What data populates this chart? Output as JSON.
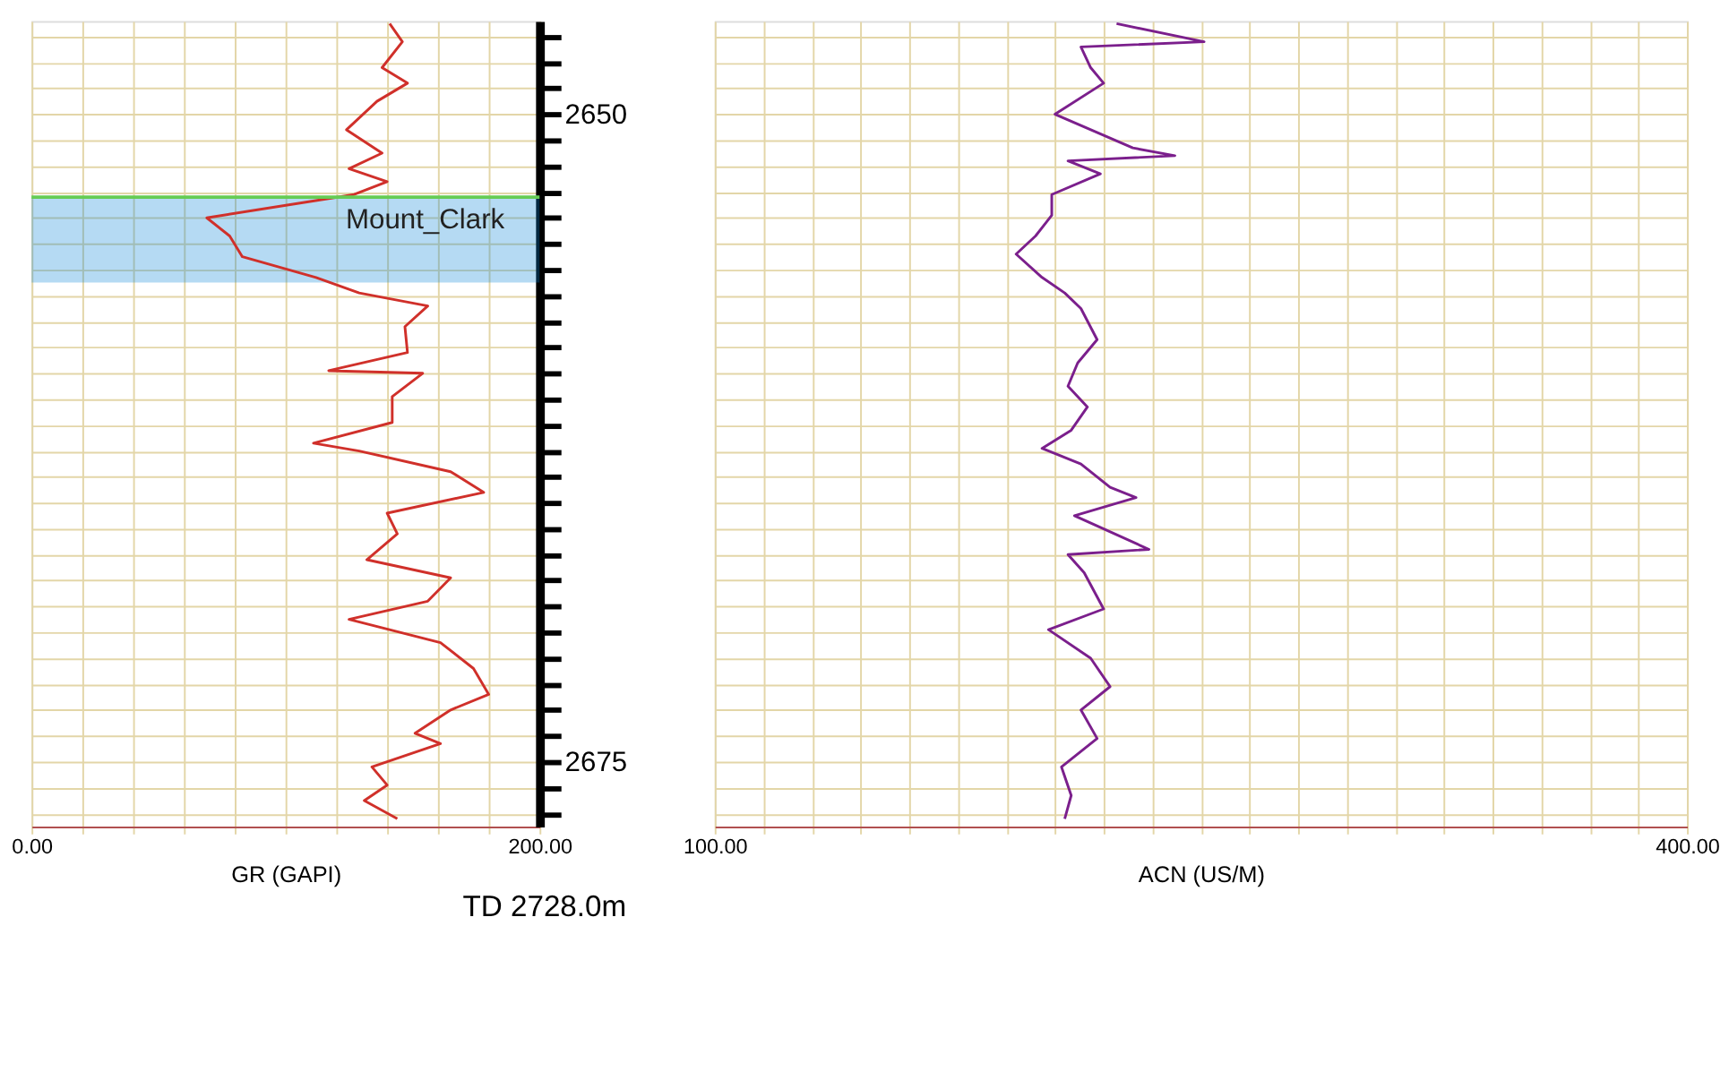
{
  "chart_data": [
    {
      "type": "line",
      "orientation": "horizontal",
      "xlabel": "GR (GAPI)",
      "xlim": [
        0,
        200
      ],
      "xticks": [
        {
          "value": 0,
          "label": "0.00"
        },
        {
          "value": 20,
          "label": null
        },
        {
          "value": 40,
          "label": null
        },
        {
          "value": 60,
          "label": null
        },
        {
          "value": 80,
          "label": null
        },
        {
          "value": 100,
          "label": null
        },
        {
          "value": 120,
          "label": null
        },
        {
          "value": 140,
          "label": null
        },
        {
          "value": 160,
          "label": null
        },
        {
          "value": 180,
          "label": null
        },
        {
          "value": 200,
          "label": "200.00"
        }
      ],
      "ylim": [
        2677.5,
        2646.4
      ],
      "yticks": [
        {
          "value": 2647,
          "label": null
        },
        {
          "value": 2648,
          "label": null
        },
        {
          "value": 2649,
          "label": null
        },
        2650,
        {
          "value": 2651,
          "label": null
        },
        {
          "value": 2652,
          "label": null
        },
        {
          "value": 2653,
          "label": null
        },
        {
          "value": 2654,
          "label": null
        },
        {
          "value": 2655,
          "label": null
        },
        {
          "value": 2656,
          "label": null
        },
        {
          "value": 2657,
          "label": null
        },
        {
          "value": 2658,
          "label": null
        },
        {
          "value": 2659,
          "label": null
        },
        {
          "value": 2660,
          "label": null
        },
        {
          "value": 2661,
          "label": null
        },
        {
          "value": 2662,
          "label": null
        },
        {
          "value": 2663,
          "label": null
        },
        {
          "value": 2664,
          "label": null
        },
        {
          "value": 2665,
          "label": null
        },
        {
          "value": 2666,
          "label": null
        },
        {
          "value": 2667,
          "label": null
        },
        {
          "value": 2668,
          "label": null
        },
        {
          "value": 2669,
          "label": null
        },
        {
          "value": 2670,
          "label": null
        },
        {
          "value": 2671,
          "label": null
        },
        {
          "value": 2672,
          "label": null
        },
        {
          "value": 2673,
          "label": null
        },
        {
          "value": 2674,
          "label": null
        },
        2675,
        {
          "value": 2676,
          "label": null
        },
        {
          "value": 2677,
          "label": null
        }
      ],
      "grid": true,
      "x": [
        2646.5,
        2647.2,
        2648.2,
        2648.8,
        2649.5,
        2650.6,
        2651.5,
        2652.1,
        2652.6,
        2653.1,
        2654.0,
        2654.7,
        2655.5,
        2656.3,
        2656.9,
        2657.4,
        2658.2,
        2659.2,
        2659.9,
        2660.0,
        2660.9,
        2661.9,
        2662.7,
        2663.0,
        2663.8,
        2664.6,
        2665.4,
        2666.2,
        2667.2,
        2667.9,
        2668.8,
        2669.5,
        2670.4,
        2671.4,
        2672.4,
        2673.0,
        2673.9,
        2674.3,
        2675.2,
        2675.9,
        2676.5,
        2677.2
      ],
      "series": [
        {
          "color": "#d0302a",
          "values": [
            141,
            146,
            138,
            148,
            136,
            124,
            138,
            125,
            140,
            127,
            69,
            78,
            83,
            112,
            129,
            156,
            147,
            148,
            117,
            154,
            142,
            142,
            111,
            129,
            165,
            178,
            140,
            144,
            132,
            165,
            156,
            125,
            161,
            174,
            180,
            165,
            151,
            161,
            134,
            140,
            131,
            144
          ]
        }
      ],
      "ref_lines": [
        {
          "axis": "y",
          "value": 2653.2,
          "label": "Mount_Clark",
          "color": "#66cc55"
        }
      ],
      "bands": [
        {
          "axis": "y",
          "from": 2653.2,
          "to": 2656.5,
          "color": "#0a84d8"
        }
      ],
      "annotations": [
        "TD  2728.0m"
      ]
    },
    {
      "type": "line",
      "orientation": "horizontal",
      "xlabel": "ACN (US/M)",
      "xlim": [
        100,
        400
      ],
      "xticks": [
        {
          "value": 100,
          "label": "100.00"
        },
        {
          "value": 115,
          "label": null
        },
        {
          "value": 130,
          "label": null
        },
        {
          "value": 145,
          "label": null
        },
        {
          "value": 160,
          "label": null
        },
        {
          "value": 175,
          "label": null
        },
        {
          "value": 190,
          "label": null
        },
        {
          "value": 205,
          "label": null
        },
        {
          "value": 220,
          "label": null
        },
        {
          "value": 235,
          "label": null
        },
        {
          "value": 250,
          "label": null
        },
        {
          "value": 265,
          "label": null
        },
        {
          "value": 280,
          "label": null
        },
        {
          "value": 295,
          "label": null
        },
        {
          "value": 310,
          "label": null
        },
        {
          "value": 325,
          "label": null
        },
        {
          "value": 340,
          "label": null
        },
        {
          "value": 355,
          "label": null
        },
        {
          "value": 370,
          "label": null
        },
        {
          "value": 385,
          "label": null
        },
        {
          "value": 400,
          "label": "400.00"
        }
      ],
      "ylim": [
        2677.5,
        2646.4
      ],
      "yticks": [
        2647,
        2648,
        2649,
        2650,
        2651,
        2652,
        2653,
        2654,
        2655,
        2656,
        2657,
        2658,
        2659,
        2660,
        2661,
        2662,
        2663,
        2664,
        2665,
        2666,
        2667,
        2668,
        2669,
        2670,
        2671,
        2672,
        2673,
        2674,
        2675,
        2676,
        2677
      ],
      "tick_labels": "x",
      "grid": true,
      "x": [
        2646.5,
        2647.2,
        2647.4,
        2648.2,
        2648.8,
        2650.0,
        2651.3,
        2651.6,
        2651.8,
        2652.3,
        2653.1,
        2653.9,
        2654.7,
        2655.4,
        2656.3,
        2656.9,
        2657.5,
        2658.7,
        2659.6,
        2660.5,
        2661.3,
        2662.2,
        2662.9,
        2663.5,
        2664.4,
        2664.8,
        2665.5,
        2666.8,
        2667.0,
        2667.7,
        2669.1,
        2669.9,
        2671.0,
        2672.1,
        2673.0,
        2674.1,
        2675.2,
        2676.3,
        2677.2
      ],
      "series": [
        {
          "color": "#7b1f8c",
          "values": [
            224,
            251,
            213,
            216,
            220,
            205,
            229,
            242,
            209,
            219,
            204,
            204,
            199,
            193,
            201,
            208,
            213,
            218,
            212,
            209,
            215,
            210,
            201,
            213,
            222,
            230,
            211,
            234,
            209,
            214,
            220,
            203,
            216,
            222,
            213,
            218,
            207,
            210,
            208
          ]
        }
      ]
    }
  ]
}
